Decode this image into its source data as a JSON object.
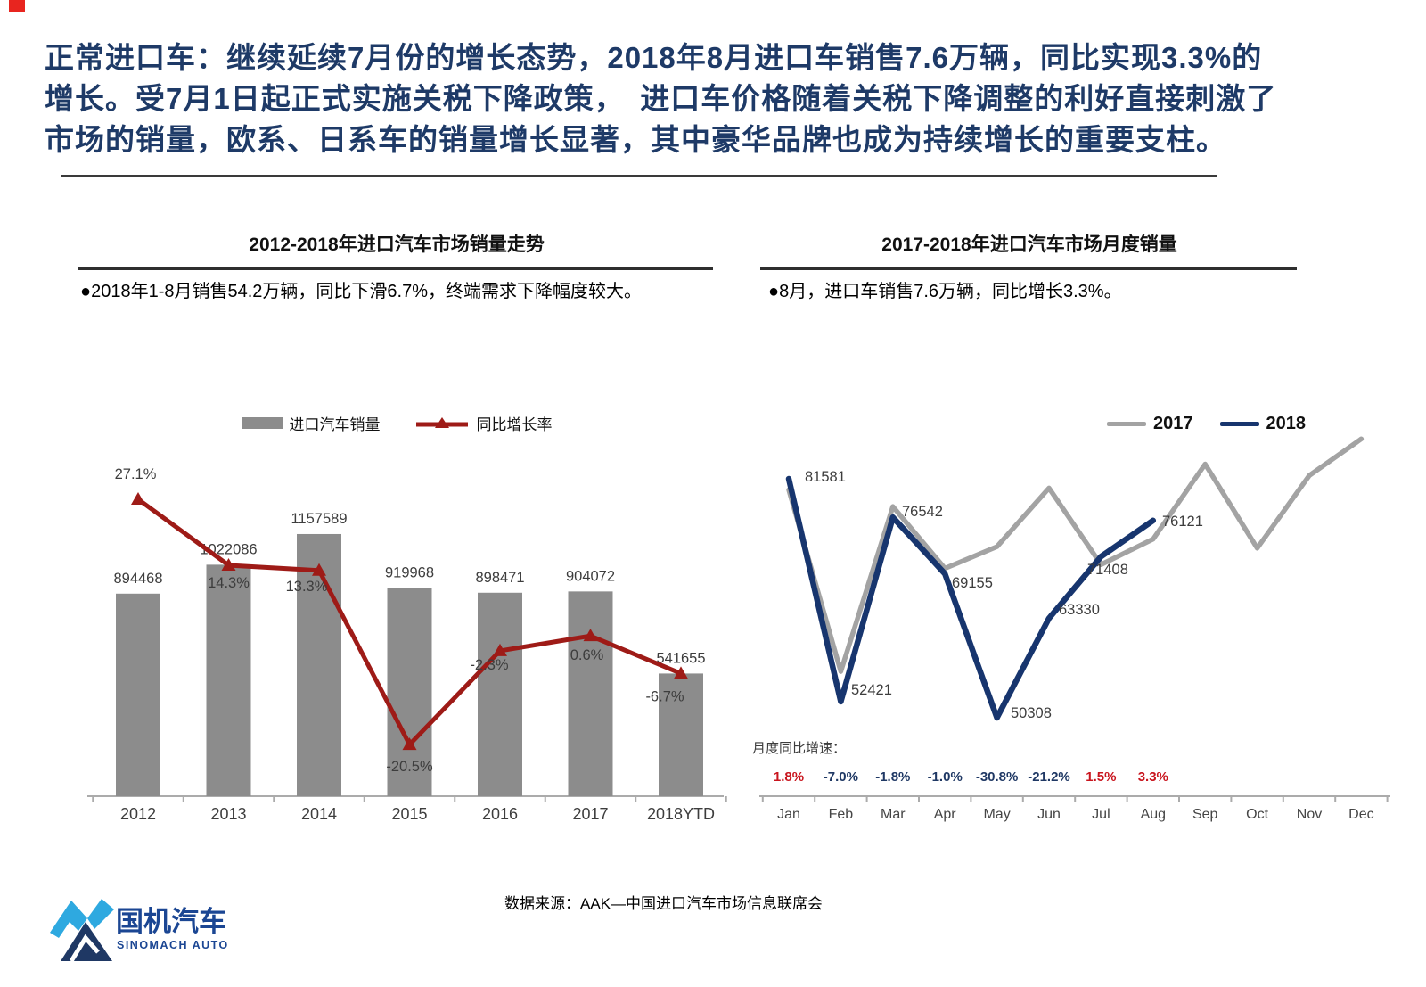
{
  "accent_color": "#E8251F",
  "header": {
    "color": "#1E3A67",
    "lines": [
      "正常进口车：继续延续7月份的增长态势，2018年8月进口车销售7.6万辆，同比实现3.3%的",
      "增长。受7月1日起正式实施关税下降政策，　进口车价格随着关税下降调整的利好直接刺激了",
      "市场的销量，欧系、日系车的销量增长显著，其中豪华品牌也成为持续增长的重要支柱。"
    ]
  },
  "left_panel": {
    "bullet": "●2018年1-8月销售54.2万辆，同比下滑6.7%，终端需求下降幅度较大。"
  },
  "right_panel": {
    "bullet": "●8月，进口车销售7.6万辆，同比增长3.3%。"
  },
  "chart_data": [
    {
      "type": "bar",
      "title": "2012-2018年进口汽车市场销量走势",
      "categories": [
        "2012",
        "2013",
        "2014",
        "2015",
        "2016",
        "2017",
        "2018YTD"
      ],
      "series": [
        {
          "name": "进口汽车销量",
          "type": "bar",
          "color": "#8C8C8C",
          "values": [
            894468,
            1022086,
            1157589,
            919968,
            898471,
            904072,
            541655
          ]
        },
        {
          "name": "同比增长率",
          "type": "line",
          "color": "#9E1B17",
          "unit": "%",
          "values": [
            27.1,
            14.3,
            13.3,
            -20.5,
            -2.3,
            0.6,
            -6.7
          ]
        }
      ],
      "legend_position": "top",
      "grid": false,
      "axis_color": "#ABABAB"
    },
    {
      "type": "line",
      "title": "2017-2018年进口汽车市场月度销量",
      "categories": [
        "Jan",
        "Feb",
        "Mar",
        "Apr",
        "May",
        "Jun",
        "Jul",
        "Aug",
        "Sep",
        "Oct",
        "Nov",
        "Dec"
      ],
      "series": [
        {
          "name": "2017",
          "color": "#A3A3A3",
          "values": [
            80139,
            56368,
            77945,
            69854,
            72699,
            80367,
            70353,
            73689,
            83500,
            72500,
            82000,
            86800
          ],
          "labeled": false
        },
        {
          "name": "2018",
          "color": "#17356E",
          "values": [
            81581,
            52421,
            76542,
            69155,
            50308,
            63330,
            71408,
            76121
          ],
          "labeled": true
        }
      ],
      "yoy_growth": {
        "label": "月度同比增速：",
        "values": [
          "1.8%",
          "-7.0%",
          "-1.8%",
          "-1.0%",
          "-30.8%",
          "-21.2%",
          "1.5%",
          "3.3%"
        ],
        "positive_color": "#C9151E",
        "negative_color": "#1F3864"
      },
      "legend_position": "top-right",
      "grid": false,
      "axis_color": "#ABABAB"
    }
  ],
  "footer": {
    "logo_cn": "国机汽车",
    "logo_en": "SINOMACH AUTO",
    "logo_color": "#1B4693",
    "logo_lightblue": "#2EA9E0",
    "logo_navy": "#1F3864",
    "source": "数据来源：AAK—中国进口汽车市场信息联席会"
  }
}
